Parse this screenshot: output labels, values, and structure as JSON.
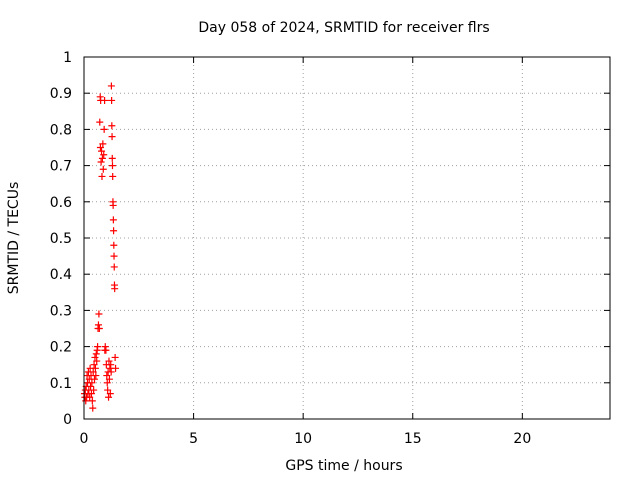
{
  "chart_data": {
    "type": "scatter",
    "title": "Day 058 of 2024, SRMTID for receiver flrs",
    "xlabel": "GPS time / hours",
    "ylabel": "SRMTID / TECUs",
    "xlim": [
      0,
      24
    ],
    "ylim": [
      0,
      1
    ],
    "xticks": [
      0,
      5,
      10,
      15,
      20
    ],
    "xtick_labels": [
      "0",
      "5",
      "10",
      "15",
      "20"
    ],
    "yticks": [
      0,
      0.1,
      0.2,
      0.3,
      0.4,
      0.5,
      0.6,
      0.7,
      0.8,
      0.9,
      1
    ],
    "ytick_labels": [
      "0",
      "0.1",
      "0.2",
      "0.3",
      "0.4",
      "0.5",
      "0.6",
      "0.7",
      "0.8",
      "0.9",
      "1"
    ],
    "grid": true,
    "marker": "plus",
    "color": "#ff0000",
    "series": [
      {
        "name": "flrs",
        "points": [
          [
            0.02,
            0.07
          ],
          [
            0.04,
            0.06
          ],
          [
            0.06,
            0.08
          ],
          [
            0.08,
            0.05
          ],
          [
            0.1,
            0.09
          ],
          [
            0.12,
            0.06
          ],
          [
            0.14,
            0.12
          ],
          [
            0.16,
            0.1
          ],
          [
            0.18,
            0.07
          ],
          [
            0.2,
            0.13
          ],
          [
            0.22,
            0.08
          ],
          [
            0.24,
            0.11
          ],
          [
            0.26,
            0.06
          ],
          [
            0.28,
            0.14
          ],
          [
            0.3,
            0.09
          ],
          [
            0.32,
            0.12
          ],
          [
            0.34,
            0.07
          ],
          [
            0.36,
            0.1
          ],
          [
            0.38,
            0.05
          ],
          [
            0.4,
            0.03
          ],
          [
            0.42,
            0.13
          ],
          [
            0.44,
            0.08
          ],
          [
            0.46,
            0.15
          ],
          [
            0.48,
            0.11
          ],
          [
            0.5,
            0.17
          ],
          [
            0.52,
            0.14
          ],
          [
            0.54,
            0.12
          ],
          [
            0.56,
            0.18
          ],
          [
            0.58,
            0.16
          ],
          [
            0.6,
            0.19
          ],
          [
            0.62,
            0.2
          ],
          [
            0.64,
            0.25
          ],
          [
            0.66,
            0.26
          ],
          [
            0.68,
            0.29
          ],
          [
            0.7,
            0.25
          ],
          [
            0.72,
            0.82
          ],
          [
            0.74,
            0.89
          ],
          [
            0.75,
            0.75
          ],
          [
            0.76,
            0.88
          ],
          [
            0.78,
            0.71
          ],
          [
            0.8,
            0.74
          ],
          [
            0.82,
            0.67
          ],
          [
            0.84,
            0.72
          ],
          [
            0.86,
            0.76
          ],
          [
            0.88,
            0.69
          ],
          [
            0.9,
            0.73
          ],
          [
            0.92,
            0.8
          ],
          [
            0.94,
            0.88
          ],
          [
            0.95,
            0.19
          ],
          [
            0.97,
            0.2
          ],
          [
            1.0,
            0.19
          ],
          [
            1.02,
            0.15
          ],
          [
            1.04,
            0.12
          ],
          [
            1.06,
            0.1
          ],
          [
            1.08,
            0.08
          ],
          [
            1.1,
            0.13
          ],
          [
            1.12,
            0.06
          ],
          [
            1.14,
            0.16
          ],
          [
            1.16,
            0.11
          ],
          [
            1.18,
            0.14
          ],
          [
            1.2,
            0.07
          ],
          [
            1.22,
            0.15
          ],
          [
            1.24,
            0.13
          ],
          [
            1.25,
            0.92
          ],
          [
            1.26,
            0.88
          ],
          [
            1.27,
            0.81
          ],
          [
            1.28,
            0.78
          ],
          [
            1.29,
            0.72
          ],
          [
            1.3,
            0.7
          ],
          [
            1.31,
            0.67
          ],
          [
            1.32,
            0.6
          ],
          [
            1.33,
            0.59
          ],
          [
            1.34,
            0.55
          ],
          [
            1.35,
            0.52
          ],
          [
            1.36,
            0.48
          ],
          [
            1.37,
            0.45
          ],
          [
            1.38,
            0.42
          ],
          [
            1.39,
            0.37
          ],
          [
            1.4,
            0.36
          ],
          [
            1.42,
            0.17
          ],
          [
            1.44,
            0.14
          ]
        ]
      }
    ]
  }
}
